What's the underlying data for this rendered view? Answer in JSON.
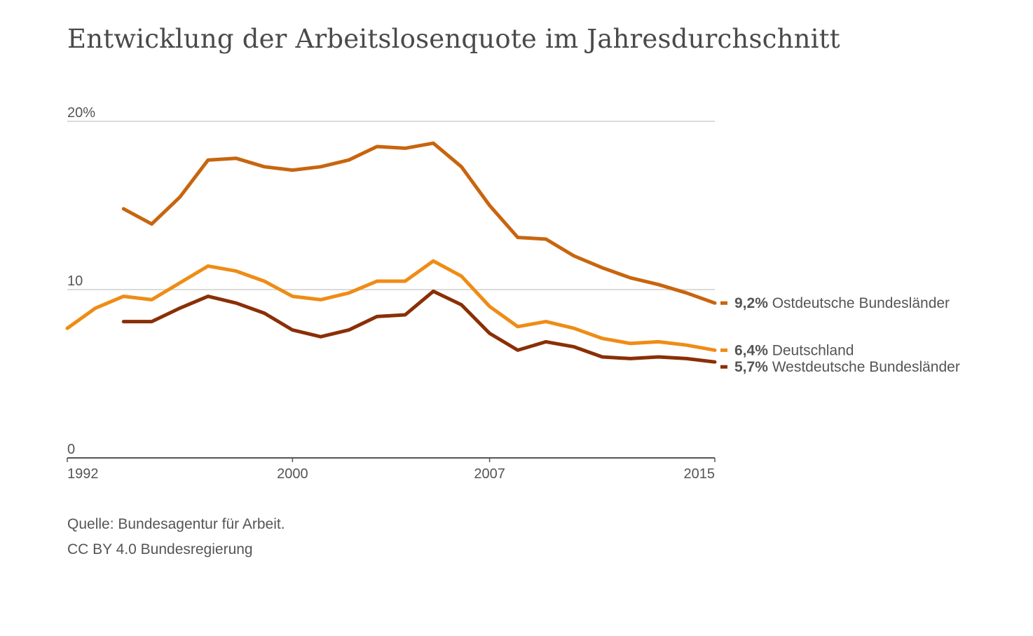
{
  "title": "Entwicklung der Arbeitslosenquote im Jahresdurchschnitt",
  "footer": {
    "source": "Quelle: Bundesagentur für Arbeit.",
    "license": "CC BY 4.0 Bundesregierung"
  },
  "chart_data": {
    "type": "line",
    "title": "Entwicklung der Arbeitslosenquote im Jahresdurchschnitt",
    "xlabel": "",
    "ylabel": "",
    "xlim": [
      1992,
      2015
    ],
    "ylim": [
      0,
      20
    ],
    "grid": true,
    "legend": "right end labels",
    "x_ticks": [
      {
        "value": 1992,
        "label": "1992"
      },
      {
        "value": 2000,
        "label": "2000"
      },
      {
        "value": 2007,
        "label": "2007"
      },
      {
        "value": 2015,
        "label": "2015"
      }
    ],
    "y_ticks": [
      {
        "value": 20,
        "label": "20%"
      },
      {
        "value": 10,
        "label": "10"
      },
      {
        "value": 0,
        "label": "0"
      }
    ],
    "series": [
      {
        "name": "Ostdeutsche Bundesländer",
        "value_label": "9,2%",
        "color": "#c8650e",
        "x": [
          1994,
          1995,
          1996,
          1997,
          1998,
          1999,
          2000,
          2001,
          2002,
          2003,
          2004,
          2005,
          2006,
          2007,
          2008,
          2009,
          2010,
          2011,
          2012,
          2013,
          2014,
          2015
        ],
        "y": [
          14.8,
          13.9,
          15.5,
          17.7,
          17.8,
          17.3,
          17.1,
          17.3,
          17.7,
          18.5,
          18.4,
          18.7,
          17.3,
          15.0,
          13.1,
          13.0,
          12.0,
          11.3,
          10.7,
          10.3,
          9.8,
          9.2
        ]
      },
      {
        "name": "Deutschland",
        "value_label": "6,4%",
        "color": "#ef8c15",
        "x": [
          1992,
          1993,
          1994,
          1995,
          1996,
          1997,
          1998,
          1999,
          2000,
          2001,
          2002,
          2003,
          2004,
          2005,
          2006,
          2007,
          2008,
          2009,
          2010,
          2011,
          2012,
          2013,
          2014,
          2015
        ],
        "y": [
          7.7,
          8.9,
          9.6,
          9.4,
          10.4,
          11.4,
          11.1,
          10.5,
          9.6,
          9.4,
          9.8,
          10.5,
          10.5,
          11.7,
          10.8,
          9.0,
          7.8,
          8.1,
          7.7,
          7.1,
          6.8,
          6.9,
          6.7,
          6.4
        ]
      },
      {
        "name": "Westdeutsche Bundesländer",
        "value_label": "5,7%",
        "color": "#8a2f06",
        "x": [
          1994,
          1995,
          1996,
          1997,
          1998,
          1999,
          2000,
          2001,
          2002,
          2003,
          2004,
          2005,
          2006,
          2007,
          2008,
          2009,
          2010,
          2011,
          2012,
          2013,
          2014,
          2015
        ],
        "y": [
          8.1,
          8.1,
          8.9,
          9.6,
          9.2,
          8.6,
          7.6,
          7.2,
          7.6,
          8.4,
          8.5,
          9.9,
          9.1,
          7.4,
          6.4,
          6.9,
          6.6,
          6.0,
          5.9,
          6.0,
          5.9,
          5.7
        ]
      }
    ]
  }
}
